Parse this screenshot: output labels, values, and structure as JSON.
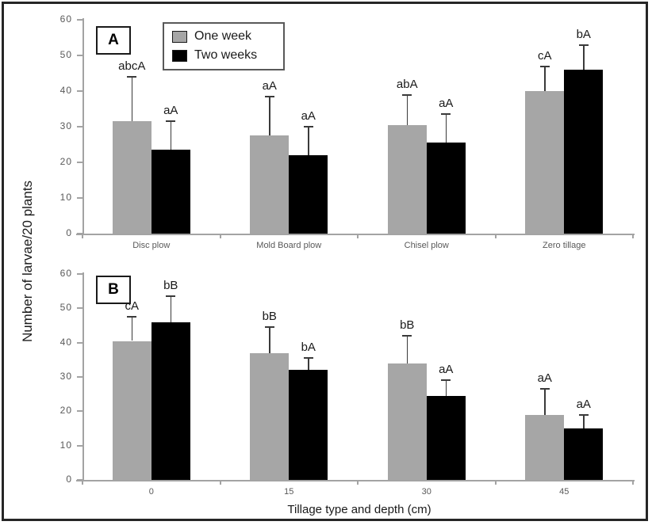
{
  "figure": {
    "y_axis_label": "Number of larvae/20 plants",
    "x_axis_label": "Tillage type and depth (cm)",
    "legend": {
      "items": [
        {
          "label": "One week",
          "color": "#a6a6a6"
        },
        {
          "label": "Two weeks",
          "color": "#000000"
        }
      ]
    },
    "colors": {
      "bar_gray": "#a6a6a6",
      "bar_black": "#000000",
      "axis": "#a3a3a3",
      "tick_label": "#595959",
      "annotation": "#1a1a1a",
      "border": "#262626"
    }
  },
  "chart_data": [
    {
      "type": "bar",
      "panel_label": "A",
      "categories": [
        "Disc plow",
        "Mold Board plow",
        "Chisel plow",
        "Zero tillage"
      ],
      "series": [
        {
          "name": "One week",
          "color": "#a6a6a6",
          "values": [
            31.5,
            27.5,
            30.5,
            40
          ],
          "errors": [
            12.5,
            11,
            8.5,
            7
          ],
          "labels": [
            "abcA",
            "aA",
            "abA",
            "cA"
          ]
        },
        {
          "name": "Two weeks",
          "color": "#000000",
          "values": [
            23.5,
            22,
            25.5,
            46
          ],
          "errors": [
            8,
            8,
            8,
            7
          ],
          "labels": [
            "aA",
            "aA",
            "aA",
            "bA"
          ]
        }
      ],
      "ylim": [
        0,
        60
      ],
      "ytick_step": 10,
      "grid": false,
      "legend_position": "top-left-inside"
    },
    {
      "type": "bar",
      "panel_label": "B",
      "categories": [
        "0",
        "15",
        "30",
        "45"
      ],
      "series": [
        {
          "name": "One week",
          "color": "#a6a6a6",
          "values": [
            40.5,
            37,
            34,
            19
          ],
          "errors": [
            7,
            7.5,
            8,
            7.5
          ],
          "labels": [
            "cA",
            "bB",
            "bB",
            "aA"
          ]
        },
        {
          "name": "Two weeks",
          "color": "#000000",
          "values": [
            46,
            32,
            24.5,
            15
          ],
          "errors": [
            7.5,
            3.5,
            4.5,
            4
          ],
          "labels": [
            "bB",
            "bA",
            "aA",
            "aA"
          ]
        }
      ],
      "ylim": [
        0,
        60
      ],
      "ytick_step": 10,
      "grid": false,
      "legend_position": "none"
    }
  ]
}
